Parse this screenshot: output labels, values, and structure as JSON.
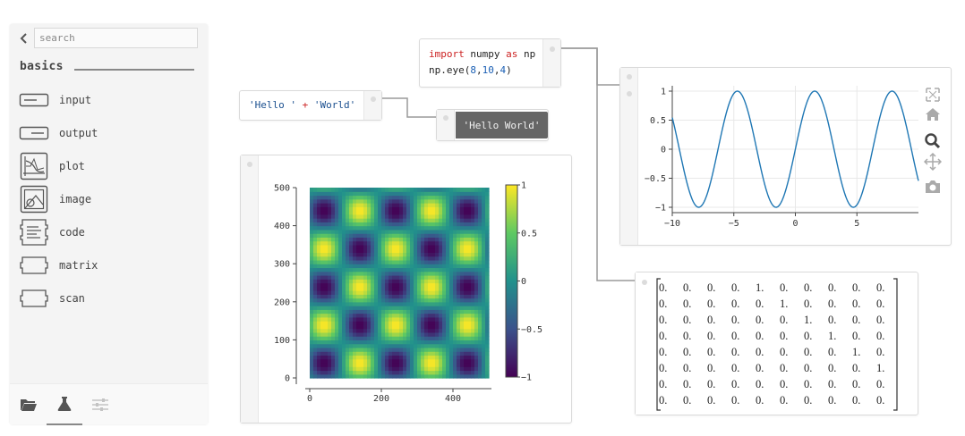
{
  "sidebar": {
    "search_placeholder": "search",
    "category": "basics",
    "items": [
      {
        "label": "input",
        "icon": "input-icon"
      },
      {
        "label": "output",
        "icon": "output-icon"
      },
      {
        "label": "plot",
        "icon": "plot-icon"
      },
      {
        "label": "image",
        "icon": "image-icon"
      },
      {
        "label": "code",
        "icon": "code-icon"
      },
      {
        "label": "matrix",
        "icon": "matrix-icon"
      },
      {
        "label": "scan",
        "icon": "scan-icon"
      }
    ],
    "tabs": [
      {
        "name": "folder-icon",
        "active": false
      },
      {
        "name": "flask-icon",
        "active": true
      },
      {
        "name": "sliders-icon",
        "active": false
      }
    ]
  },
  "cells": {
    "hello": {
      "str1": "'Hello '",
      "op": "+",
      "str2": "'World'"
    },
    "hello_out": "'Hello World'",
    "numpy": {
      "kw1": "import",
      "lib": "numpy",
      "kw2": "as",
      "alias": "np",
      "call": "np.eye(",
      "a1": "8",
      "a2": "10",
      "a3": "4",
      "close": ")"
    },
    "matrix_rows": [
      [
        "0.",
        "0.",
        "0.",
        "0.",
        "1.",
        "0.",
        "0.",
        "0.",
        "0.",
        "0."
      ],
      [
        "0.",
        "0.",
        "0.",
        "0.",
        "0.",
        "1.",
        "0.",
        "0.",
        "0.",
        "0."
      ],
      [
        "0.",
        "0.",
        "0.",
        "0.",
        "0.",
        "0.",
        "1.",
        "0.",
        "0.",
        "0."
      ],
      [
        "0.",
        "0.",
        "0.",
        "0.",
        "0.",
        "0.",
        "0.",
        "1.",
        "0.",
        "0."
      ],
      [
        "0.",
        "0.",
        "0.",
        "0.",
        "0.",
        "0.",
        "0.",
        "0.",
        "1.",
        "0."
      ],
      [
        "0.",
        "0.",
        "0.",
        "0.",
        "0.",
        "0.",
        "0.",
        "0.",
        "0.",
        "1."
      ],
      [
        "0.",
        "0.",
        "0.",
        "0.",
        "0.",
        "0.",
        "0.",
        "0.",
        "0.",
        "0."
      ],
      [
        "0.",
        "0.",
        "0.",
        "0.",
        "0.",
        "0.",
        "0.",
        "0.",
        "0.",
        "0."
      ]
    ]
  },
  "toolbar_icons": [
    "autoscale-icon",
    "home-icon",
    "zoom-icon",
    "pan-icon",
    "camera-icon"
  ],
  "chart_data": [
    {
      "type": "heatmap",
      "x_ticks": [
        "0",
        "200",
        "400"
      ],
      "y_ticks": [
        "0",
        "100",
        "200",
        "300",
        "400",
        "500"
      ],
      "xlim": [
        0,
        500
      ],
      "ylim": [
        0,
        500
      ],
      "colorbar_ticks": [
        "1",
        "0.5",
        "0",
        "−0.5",
        "−1"
      ],
      "colorbar_range": [
        -1,
        1
      ],
      "pattern": "sin(x)*sin(y) checkerboard, 2.5 periods",
      "colormap": [
        "#440154",
        "#3b528b",
        "#21918c",
        "#5ec962",
        "#fde725"
      ]
    },
    {
      "type": "line",
      "x_ticks": [
        "−10",
        "−5",
        "0",
        "5"
      ],
      "y_ticks": [
        "1",
        "0.5",
        "0",
        "−0.5",
        "−1"
      ],
      "xlim": [
        -10,
        10
      ],
      "ylim": [
        -1,
        1
      ],
      "series": [
        {
          "function": "sin(x)",
          "color": "#1f77b4"
        }
      ],
      "grid": true
    }
  ]
}
